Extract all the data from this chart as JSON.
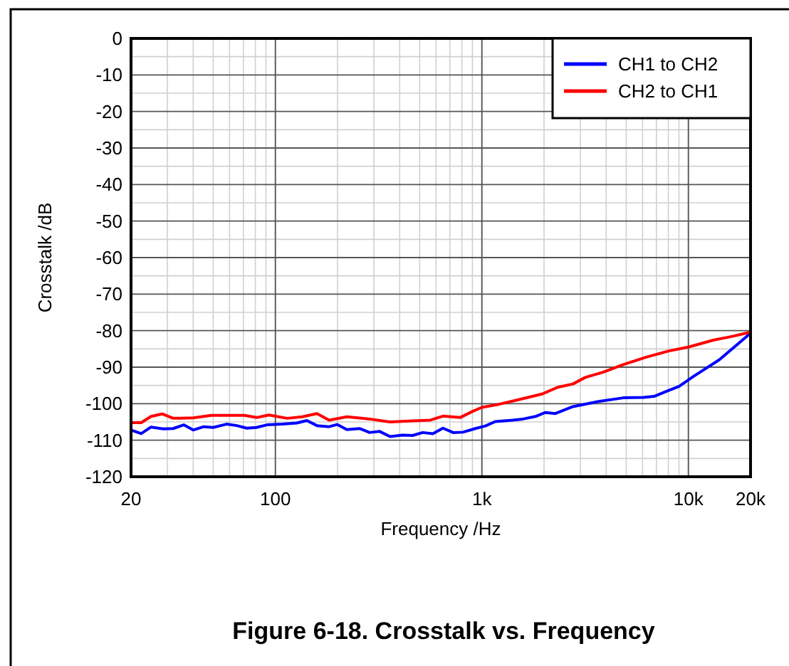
{
  "chart_data": {
    "type": "line",
    "title": "Figure 6-18. Crosstalk vs. Frequency",
    "xlabel": "Frequency /Hz",
    "ylabel": "Crosstalk /dB",
    "log": "x",
    "grid": true,
    "legend": "top right",
    "line_style": "solid",
    "xlim": [
      20,
      20000
    ],
    "xticks": [
      20,
      100,
      {
        "value": 1000,
        "label": "1k"
      },
      {
        "value": 10000,
        "label": "10k"
      },
      {
        "value": 20000,
        "label": "20k"
      }
    ],
    "ylim": [
      -120,
      0
    ],
    "yticks": [
      -120,
      -110,
      -100,
      -90,
      -80,
      -70,
      -60,
      -50,
      -40,
      -30,
      -20,
      -10,
      0
    ],
    "series": [
      {
        "name": "CH1 to CH2",
        "color": "#0000ff",
        "x": [
          20,
          22.4,
          25,
          28.6,
          32,
          36,
          40,
          45,
          50,
          58,
          65,
          72.7,
          81,
          91,
          108,
          127,
          142,
          159,
          182,
          199,
          222,
          256,
          286,
          320,
          359,
          413,
          462,
          517,
          579,
          648,
          725,
          810,
          930,
          1040,
          1160,
          1410,
          1580,
          1820,
          2030,
          2270,
          2760,
          3670,
          4840,
          6080,
          6820,
          8000,
          9000,
          10600,
          14100,
          20000
        ],
        "values": [
          -107.2,
          -108.2,
          -106.4,
          -106.9,
          -106.8,
          -105.8,
          -107.2,
          -106.3,
          -106.5,
          -105.6,
          -106,
          -106.7,
          -106.5,
          -105.8,
          -105.6,
          -105.3,
          -104.6,
          -106,
          -106.3,
          -105.7,
          -107.1,
          -106.8,
          -107.9,
          -107.6,
          -109,
          -108.6,
          -108.7,
          -107.9,
          -108.2,
          -106.7,
          -107.9,
          -107.8,
          -106.8,
          -106.1,
          -104.9,
          -104.5,
          -104.2,
          -103.5,
          -102.4,
          -102.7,
          -100.8,
          -99.4,
          -98.4,
          -98.3,
          -98,
          -96.4,
          -95.3,
          -92.5,
          -88,
          -80.7
        ]
      },
      {
        "name": "CH2 to CH1",
        "color": "#ff0000",
        "x": [
          20,
          22.4,
          25,
          28.3,
          32,
          40,
          49,
          58,
          71,
          81,
          93,
          114,
          135,
          159,
          182,
          222,
          286,
          359,
          462,
          563,
          648,
          784,
          902,
          1000,
          1180,
          1480,
          1970,
          2330,
          2760,
          3170,
          3860,
          4840,
          6220,
          8000,
          10000,
          13220,
          16520,
          20000
        ],
        "values": [
          -105.2,
          -105.2,
          -103.5,
          -102.8,
          -104,
          -103.9,
          -103.2,
          -103.2,
          -103.2,
          -103.8,
          -103.1,
          -104,
          -103.6,
          -102.7,
          -104.5,
          -103.6,
          -104.2,
          -105,
          -104.7,
          -104.5,
          -103.4,
          -103.8,
          -102.1,
          -101,
          -100.3,
          -99,
          -97.3,
          -95.5,
          -94.6,
          -92.8,
          -91.4,
          -89.3,
          -87.3,
          -85.6,
          -84.5,
          -82.6,
          -81.5,
          -80.4
        ]
      }
    ]
  }
}
